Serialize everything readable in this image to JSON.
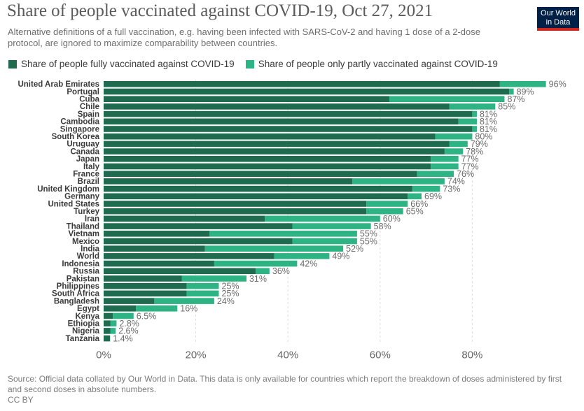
{
  "header": {
    "title": "Share of people vaccinated against COVID-19, Oct 27, 2021",
    "subtitle": "Alternative definitions of a full vaccination, e.g. having been infected with SARS-CoV-2 and having 1 dose of a 2-dose protocol, are ignored to maximize comparability between countries.",
    "logo_line1": "Our World",
    "logo_line2": "in Data"
  },
  "legend": {
    "full_label": "Share of people fully vaccinated against COVID-19",
    "partial_label": "Share of people only partly vaccinated against COVID-19"
  },
  "colors": {
    "full": "#1f6b4f",
    "partial": "#2db384",
    "label": "#6b6b6b",
    "country": "#3b3b3b",
    "grid": "#dddddd"
  },
  "chart_data": {
    "type": "bar",
    "orientation": "horizontal",
    "stacked": true,
    "title": "Share of people vaccinated against COVID-19, Oct 27, 2021",
    "xlim": [
      0,
      96
    ],
    "xticks": [
      0,
      20,
      40,
      60,
      80
    ],
    "xtick_labels": [
      "0%",
      "20%",
      "40%",
      "60%",
      "80%"
    ],
    "categories": [
      "United Arab Emirates",
      "Portugal",
      "Cuba",
      "Chile",
      "Spain",
      "Cambodia",
      "Singapore",
      "South Korea",
      "Uruguay",
      "Canada",
      "Japan",
      "Italy",
      "France",
      "Brazil",
      "United Kingdom",
      "Germany",
      "United States",
      "Turkey",
      "Iran",
      "Thailand",
      "Vietnam",
      "Mexico",
      "India",
      "World",
      "Indonesia",
      "Russia",
      "Pakistan",
      "Philippines",
      "South Africa",
      "Bangladesh",
      "Egypt",
      "Kenya",
      "Ethiopia",
      "Nigeria",
      "Tanzania"
    ],
    "series": [
      {
        "name": "Share of people fully vaccinated against COVID-19",
        "values": [
          86,
          88,
          62,
          75,
          80,
          77,
          80,
          72,
          75,
          74,
          71,
          71,
          68,
          54,
          67,
          66,
          57,
          57,
          35,
          41,
          23,
          41,
          22,
          37,
          24,
          33,
          17,
          18,
          18,
          11,
          7,
          2,
          1.5,
          1.5,
          1.4
        ]
      },
      {
        "name": "Share of people only partly vaccinated against COVID-19",
        "values": [
          10,
          1,
          25,
          10,
          1,
          4,
          1,
          8,
          4,
          4,
          6,
          6,
          8,
          20,
          6,
          3,
          9,
          8,
          25,
          17,
          32,
          14,
          30,
          12,
          18,
          3,
          14,
          7,
          7,
          13,
          9,
          4.5,
          1.3,
          1.1,
          0
        ]
      }
    ],
    "total_labels": [
      "96%",
      "89%",
      "87%",
      "85%",
      "81%",
      "81%",
      "81%",
      "80%",
      "79%",
      "78%",
      "77%",
      "77%",
      "76%",
      "74%",
      "73%",
      "69%",
      "66%",
      "65%",
      "60%",
      "58%",
      "55%",
      "55%",
      "52%",
      "49%",
      "42%",
      "36%",
      "31%",
      "25%",
      "25%",
      "24%",
      "16%",
      "6.5%",
      "2.8%",
      "2.6%",
      "1.4%"
    ]
  },
  "footer": {
    "source": "Source: Official data collated by Our World in Data. This data is only available for countries which report the breakdown of doses administered by first and second doses in absolute numbers.",
    "license": "CC BY"
  }
}
